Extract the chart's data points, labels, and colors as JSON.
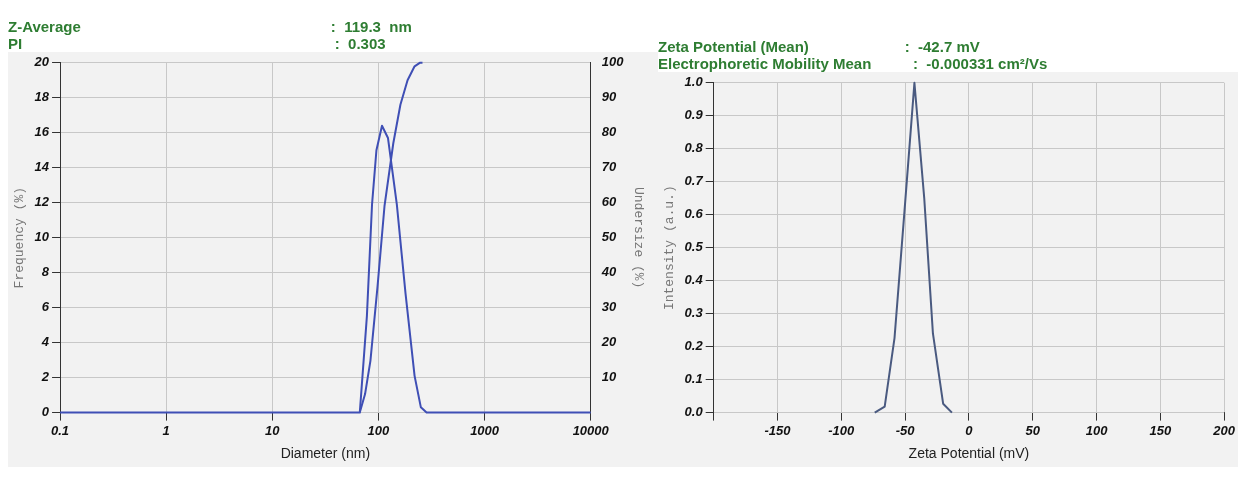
{
  "chart_data": [
    {
      "type": "line",
      "title": "Z-Average                                                            :  119.3  nm",
      "subtitle": "PI                                                                           :  0.303",
      "xlabel": "Diameter (nm)",
      "ylabel": "Frequency (%)",
      "y2label": "Undersize (%)",
      "log": "x",
      "grid": true,
      "xlim": [
        0.1,
        10000
      ],
      "xticks": [
        0.1,
        1,
        10,
        100,
        1000,
        10000
      ],
      "ylim": [
        0,
        20
      ],
      "yticks": [
        0,
        2,
        4,
        6,
        8,
        10,
        12,
        14,
        16,
        18,
        20
      ],
      "y2lim": [
        0,
        100
      ],
      "y2ticks": [
        10,
        20,
        30,
        40,
        50,
        60,
        70,
        80,
        90,
        100
      ],
      "series": [
        {
          "color": "#3f4fb5",
          "x": [
            0.1,
            66.7,
            77.8,
            87,
            95.7,
            108,
            123,
            149,
            180,
            219,
            251,
            284,
            10000
          ],
          "values": [
            0,
            0,
            5.5,
            11.9,
            15.0,
            16.4,
            15.7,
            11.9,
            6.8,
            2.1,
            0.3,
            0,
            0
          ]
        },
        {
          "color": "#3f4fb5",
          "axis": "y2",
          "x": [
            66.7,
            74.8,
            84,
            98,
            114,
            138,
            161,
            188,
            219,
            245,
            260
          ],
          "values": [
            0,
            5.3,
            14.8,
            36,
            59,
            77,
            88,
            95,
            99,
            100,
            100
          ]
        }
      ]
    },
    {
      "type": "line",
      "title": "Zeta Potential (Mean)                       :  -42.7 mV",
      "subtitle": "Electrophoretic Mobility Mean          :  -0.000331 cm²/Vs",
      "xlabel": "Zeta Potential (mV)",
      "ylabel": "Intensity (a.u.)",
      "grid": true,
      "xlim": [
        -200,
        200
      ],
      "xticks": [
        {
          "value": -200,
          "label": null
        },
        -150,
        -100,
        -50,
        0,
        50,
        100,
        150,
        200
      ],
      "ylim": [
        0,
        1
      ],
      "yticks": [
        {
          "value": 0,
          "label": "0.0"
        },
        0.1,
        0.2,
        0.3,
        0.4,
        0.5,
        0.6,
        0.7,
        0.8,
        0.9,
        {
          "value": 1,
          "label": "1.0"
        }
      ],
      "series": [
        {
          "color": "#4a5a80",
          "x": [
            -73.8,
            -66.0,
            -58.3,
            -50.5,
            -42.7,
            -35.0,
            -28.2,
            -20.2,
            -13.3
          ],
          "values": [
            0,
            0.018,
            0.226,
            0.61,
            1.0,
            0.65,
            0.24,
            0.027,
            0
          ]
        }
      ]
    }
  ]
}
